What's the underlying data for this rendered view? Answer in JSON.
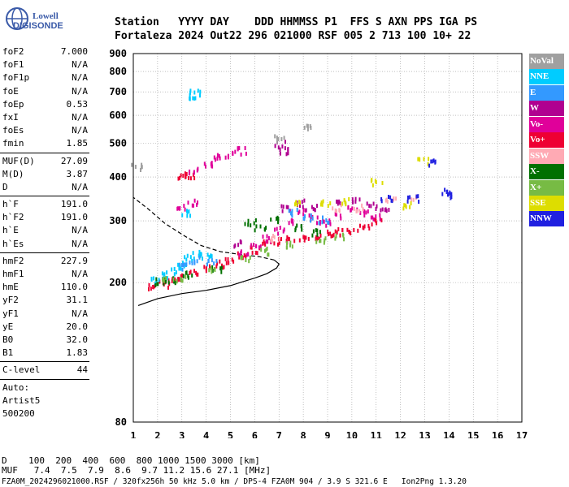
{
  "logo": {
    "line1": "Lowell",
    "line2": "DIGISONDE"
  },
  "header": {
    "line1": "Station   YYYY DAY    DDD HHMMSS P1  FFS S AXN PPS IGA PS",
    "line2": "Fortaleza 2024 Out22 296 021000 RSF 005 2 713 100 10+ 22"
  },
  "params": {
    "group1": [
      {
        "name": "foF2",
        "value": "7.000"
      },
      {
        "name": "foF1",
        "value": "N/A"
      },
      {
        "name": "foF1p",
        "value": "N/A"
      },
      {
        "name": "foE",
        "value": "N/A"
      },
      {
        "name": "foEp",
        "value": "0.53"
      },
      {
        "name": "fxI",
        "value": "N/A"
      },
      {
        "name": "foEs",
        "value": "N/A"
      },
      {
        "name": "fmin",
        "value": "1.85"
      }
    ],
    "group2": [
      {
        "name": "MUF(D)",
        "value": "27.09"
      },
      {
        "name": "M(D)",
        "value": "3.87"
      },
      {
        "name": "D",
        "value": "N/A"
      }
    ],
    "group3": [
      {
        "name": "h`F",
        "value": "191.0"
      },
      {
        "name": "h`F2",
        "value": "191.0"
      },
      {
        "name": "h`E",
        "value": "N/A"
      },
      {
        "name": "h`Es",
        "value": "N/A"
      }
    ],
    "group4": [
      {
        "name": "hmF2",
        "value": "227.9"
      },
      {
        "name": "hmF1",
        "value": "N/A"
      },
      {
        "name": "hmE",
        "value": "110.0"
      },
      {
        "name": "yF2",
        "value": "31.1"
      },
      {
        "name": "yF1",
        "value": "N/A"
      },
      {
        "name": "yE",
        "value": "20.0"
      },
      {
        "name": "B0",
        "value": "32.0"
      },
      {
        "name": "B1",
        "value": "1.83"
      }
    ],
    "group5": [
      {
        "name": "C-level",
        "value": "44"
      }
    ],
    "auto": [
      "Auto:",
      "Artist5",
      "500200"
    ]
  },
  "legend": [
    {
      "label": "NoVal",
      "color": "#a0a0a0"
    },
    {
      "label": "NNE",
      "color": "#00ccff"
    },
    {
      "label": "E",
      "color": "#3399ff"
    },
    {
      "label": "W",
      "color": "#b00090"
    },
    {
      "label": "Vo-",
      "color": "#e0009a"
    },
    {
      "label": "Vo+",
      "color": "#ee0033"
    },
    {
      "label": "SSW",
      "color": "#ffaab4"
    },
    {
      "label": "X-",
      "color": "#007000"
    },
    {
      "label": "X+",
      "color": "#77bb44"
    },
    {
      "label": "SSE",
      "color": "#dddd00"
    },
    {
      "label": "NNW",
      "color": "#2020e0"
    }
  ],
  "footer": {
    "line1": "D    100  200  400  600  800 1000 1500 3000 [km]",
    "line2": "MUF   7.4  7.5  7.9  8.6  9.7 11.2 15.6 27.1 [MHz]",
    "line3": "FZA0M_2024296021000.RSF / 320fx256h 50 kHz 5.0 km / DPS-4 FZA0M 904 / 3.9 S 321.6 E   Ion2Png 1.3.20"
  },
  "chart_data": {
    "type": "scatter",
    "xlim": [
      1,
      17
    ],
    "ylim": [
      80,
      900
    ],
    "y_scale": "log",
    "x_ticks": [
      1,
      2,
      3,
      4,
      5,
      6,
      7,
      8,
      9,
      10,
      11,
      12,
      13,
      14,
      15,
      16,
      17
    ],
    "y_ticks": [
      80,
      200,
      300,
      400,
      500,
      600,
      700,
      800,
      900
    ],
    "grid": true,
    "series": [
      {
        "name": "Vo+",
        "color": "#ee0033",
        "points": [
          [
            1.8,
            197
          ],
          [
            2.2,
            200
          ],
          [
            2.6,
            205
          ],
          [
            3.0,
            210
          ],
          [
            3.5,
            215
          ],
          [
            4.0,
            222
          ],
          [
            4.5,
            228
          ],
          [
            5.0,
            235
          ],
          [
            5.5,
            242
          ],
          [
            6.0,
            250
          ],
          [
            6.5,
            260
          ],
          [
            7.0,
            265
          ],
          [
            7.5,
            268
          ],
          [
            8.0,
            272
          ],
          [
            8.5,
            275
          ],
          [
            9.0,
            278
          ],
          [
            9.5,
            282
          ],
          [
            10.0,
            285
          ],
          [
            10.5,
            290
          ],
          [
            11.0,
            300
          ],
          [
            3.0,
            405
          ],
          [
            3.3,
            410
          ]
        ]
      },
      {
        "name": "Vo-",
        "color": "#e0009a",
        "points": [
          [
            5.5,
            245
          ],
          [
            6.0,
            258
          ],
          [
            6.5,
            270
          ],
          [
            7.0,
            285
          ],
          [
            7.5,
            300
          ],
          [
            8.0,
            320
          ],
          [
            8.5,
            305
          ],
          [
            9.0,
            300
          ],
          [
            9.5,
            315
          ],
          [
            10.0,
            330
          ],
          [
            10.5,
            320
          ],
          [
            11.0,
            310
          ],
          [
            3.5,
            420
          ],
          [
            4.0,
            440
          ],
          [
            4.5,
            460
          ],
          [
            5.0,
            470
          ],
          [
            5.5,
            480
          ],
          [
            3.0,
            330
          ],
          [
            3.4,
            340
          ]
        ]
      },
      {
        "name": "W",
        "color": "#b00090",
        "points": [
          [
            7.2,
            330
          ],
          [
            7.8,
            340
          ],
          [
            8.3,
            330
          ],
          [
            9.5,
            340
          ],
          [
            10.2,
            345
          ],
          [
            10.8,
            335
          ],
          [
            11.3,
            330
          ],
          [
            7.0,
            500
          ],
          [
            7.2,
            480
          ],
          [
            5.3,
            260
          ]
        ]
      },
      {
        "name": "NNE",
        "color": "#00ccff",
        "points": [
          [
            1.9,
            205
          ],
          [
            2.3,
            212
          ],
          [
            2.7,
            218
          ],
          [
            3.0,
            230
          ],
          [
            3.3,
            238
          ],
          [
            3.6,
            244
          ],
          [
            4.0,
            240
          ],
          [
            3.2,
            320
          ],
          [
            3.5,
            700
          ],
          [
            3.4,
            680
          ]
        ]
      },
      {
        "name": "E",
        "color": "#3399ff",
        "points": [
          [
            3.1,
            225
          ],
          [
            3.5,
            235
          ],
          [
            4.2,
            232
          ],
          [
            7.5,
            320
          ],
          [
            8.2,
            310
          ],
          [
            8.8,
            305
          ]
        ]
      },
      {
        "name": "SSW",
        "color": "#ffaab4",
        "points": [
          [
            6.8,
            270
          ],
          [
            9.3,
            330
          ],
          [
            10.3,
            330
          ],
          [
            11.6,
            345
          ],
          [
            12.4,
            355
          ]
        ]
      },
      {
        "name": "X-",
        "color": "#007000",
        "points": [
          [
            2.1,
            203
          ],
          [
            2.5,
            206
          ],
          [
            3.2,
            212
          ],
          [
            4.4,
            220
          ],
          [
            5.8,
            300
          ],
          [
            6.2,
            290
          ],
          [
            6.8,
            305
          ],
          [
            7.7,
            290
          ],
          [
            8.5,
            280
          ]
        ]
      },
      {
        "name": "X+",
        "color": "#77bb44",
        "points": [
          [
            2.4,
            205
          ],
          [
            2.9,
            208
          ],
          [
            4.1,
            220
          ],
          [
            5.6,
            235
          ],
          [
            6.4,
            248
          ],
          [
            7.3,
            258
          ],
          [
            8.7,
            268
          ],
          [
            9.5,
            272
          ]
        ]
      },
      {
        "name": "SSE",
        "color": "#dddd00",
        "points": [
          [
            7.6,
            345
          ],
          [
            8.9,
            340
          ],
          [
            9.8,
            345
          ],
          [
            11.0,
            390
          ],
          [
            12.3,
            335
          ],
          [
            12.9,
            450
          ]
        ]
      },
      {
        "name": "NNW",
        "color": "#2020e0",
        "points": [
          [
            11.4,
            350
          ],
          [
            12.5,
            350
          ],
          [
            13.3,
            445
          ],
          [
            13.9,
            365
          ],
          [
            14.1,
            360
          ]
        ]
      },
      {
        "name": "NoVal",
        "color": "#a0a0a0",
        "points": [
          [
            1.1,
            430
          ],
          [
            7.0,
            520
          ],
          [
            8.2,
            560
          ]
        ]
      }
    ],
    "profile": [
      [
        1.2,
        172
      ],
      [
        2.0,
        180
      ],
      [
        3.0,
        186
      ],
      [
        4.0,
        190
      ],
      [
        5.0,
        196
      ],
      [
        5.5,
        201
      ],
      [
        6.0,
        206
      ],
      [
        6.5,
        212
      ],
      [
        6.9,
        220
      ],
      [
        7.0,
        226
      ],
      [
        6.8,
        232
      ],
      [
        6.2,
        237
      ],
      [
        5.5,
        240
      ],
      [
        4.6,
        245
      ],
      [
        3.8,
        255
      ],
      [
        3.1,
        272
      ],
      [
        2.3,
        295
      ],
      [
        1.6,
        325
      ],
      [
        1.0,
        350
      ]
    ]
  }
}
